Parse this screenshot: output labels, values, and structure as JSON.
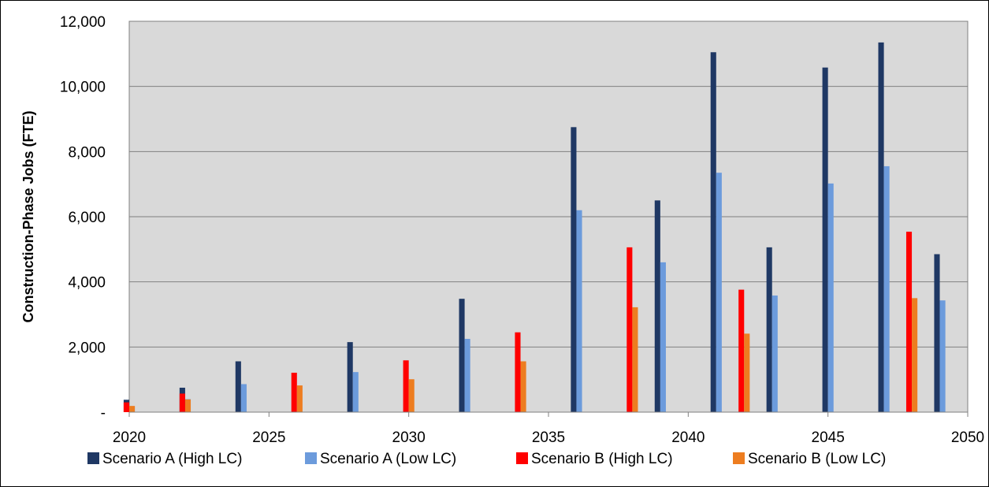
{
  "chart_data": {
    "type": "bar",
    "title": "",
    "xlabel": "",
    "ylabel": "Construction-Phase Jobs (FTE)",
    "xlim": [
      2020,
      2050
    ],
    "ylim": [
      0,
      12000
    ],
    "x_ticks": [
      2020,
      2025,
      2030,
      2035,
      2040,
      2045,
      2050
    ],
    "x_tick_labels": [
      "2020",
      "2025",
      "2030",
      "2035",
      "2040",
      "2045",
      "2050"
    ],
    "y_ticks": [
      0,
      2000,
      4000,
      6000,
      8000,
      10000,
      12000
    ],
    "y_tick_labels": [
      "-",
      "2,000",
      "4,000",
      "6,000",
      "8,000",
      "10,000",
      "12,000"
    ],
    "grid": true,
    "legend_position": "bottom",
    "series": [
      {
        "name": "Scenario A (High LC)",
        "color": "#1f3864",
        "points": [
          {
            "x": 2020,
            "y": 380
          },
          {
            "x": 2022,
            "y": 750
          },
          {
            "x": 2024,
            "y": 1560
          },
          {
            "x": 2028,
            "y": 2150
          },
          {
            "x": 2032,
            "y": 3480
          },
          {
            "x": 2036,
            "y": 8750
          },
          {
            "x": 2039,
            "y": 6500
          },
          {
            "x": 2041,
            "y": 11050
          },
          {
            "x": 2043,
            "y": 5060
          },
          {
            "x": 2045,
            "y": 10580
          },
          {
            "x": 2047,
            "y": 11350
          },
          {
            "x": 2049,
            "y": 4850
          }
        ]
      },
      {
        "name": "Scenario A (Low LC)",
        "color": "#6c9bdc",
        "points": [
          {
            "x": 2020,
            "y": 180
          },
          {
            "x": 2022,
            "y": 400
          },
          {
            "x": 2024,
            "y": 860
          },
          {
            "x": 2028,
            "y": 1230
          },
          {
            "x": 2032,
            "y": 2250
          },
          {
            "x": 2036,
            "y": 6200
          },
          {
            "x": 2039,
            "y": 4600
          },
          {
            "x": 2041,
            "y": 7350
          },
          {
            "x": 2043,
            "y": 3580
          },
          {
            "x": 2045,
            "y": 7020
          },
          {
            "x": 2047,
            "y": 7550
          },
          {
            "x": 2049,
            "y": 3430
          }
        ]
      },
      {
        "name": "Scenario B (High LC)",
        "color": "#ff0000",
        "points": [
          {
            "x": 2020,
            "y": 300
          },
          {
            "x": 2022,
            "y": 570
          },
          {
            "x": 2026,
            "y": 1210
          },
          {
            "x": 2030,
            "y": 1590
          },
          {
            "x": 2034,
            "y": 2450
          },
          {
            "x": 2038,
            "y": 5060
          },
          {
            "x": 2042,
            "y": 3760
          },
          {
            "x": 2048,
            "y": 5540
          }
        ]
      },
      {
        "name": "Scenario B (Low LC)",
        "color": "#ed7d20",
        "points": [
          {
            "x": 2020,
            "y": 190
          },
          {
            "x": 2022,
            "y": 390
          },
          {
            "x": 2026,
            "y": 820
          },
          {
            "x": 2030,
            "y": 1010
          },
          {
            "x": 2034,
            "y": 1560
          },
          {
            "x": 2038,
            "y": 3220
          },
          {
            "x": 2042,
            "y": 2410
          },
          {
            "x": 2048,
            "y": 3500
          }
        ]
      }
    ]
  }
}
